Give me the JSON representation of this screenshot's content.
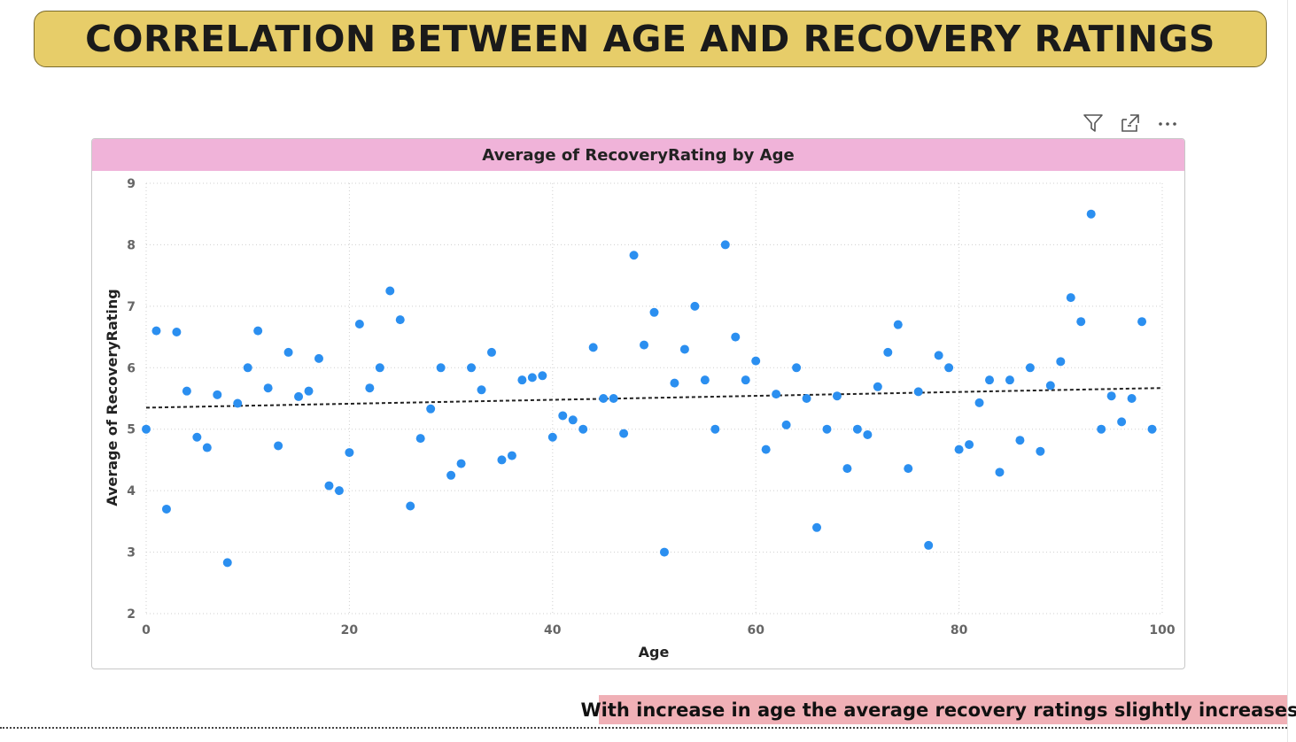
{
  "page": {
    "title": "CORRELATION BETWEEN AGE AND RECOVERY RATINGS",
    "insight": "With increase in age the average recovery ratings slightly increases."
  },
  "toolbar": {
    "icons": [
      "filter-icon",
      "focus-mode-icon",
      "more-options-icon"
    ]
  },
  "colors": {
    "title_banner": "#e7cd69",
    "chart_header": "#f0b3d9",
    "insight_bg": "#f0b0b6",
    "points": "#2b8ff0",
    "trend": "#222222"
  },
  "chart_data": {
    "type": "scatter",
    "title": "Average of RecoveryRating by Age",
    "xlabel": "Age",
    "ylabel": "Average of RecoveryRating",
    "xlim": [
      0,
      100
    ],
    "ylim": [
      2,
      9
    ],
    "x_ticks": [
      0,
      20,
      40,
      60,
      80,
      100
    ],
    "y_ticks": [
      2,
      3,
      4,
      5,
      6,
      7,
      8,
      9
    ],
    "grid": true,
    "trendline": {
      "style": "dashed",
      "start": [
        0,
        5.35
      ],
      "end": [
        100,
        5.67
      ]
    },
    "points": [
      {
        "x": 0,
        "y": 5.0
      },
      {
        "x": 1,
        "y": 6.6
      },
      {
        "x": 2,
        "y": 3.7
      },
      {
        "x": 3,
        "y": 6.58
      },
      {
        "x": 4,
        "y": 5.62
      },
      {
        "x": 5,
        "y": 4.87
      },
      {
        "x": 6,
        "y": 4.7
      },
      {
        "x": 7,
        "y": 5.56
      },
      {
        "x": 8,
        "y": 2.83
      },
      {
        "x": 9,
        "y": 5.42
      },
      {
        "x": 10,
        "y": 6.0
      },
      {
        "x": 11,
        "y": 6.6
      },
      {
        "x": 12,
        "y": 5.67
      },
      {
        "x": 13,
        "y": 4.73
      },
      {
        "x": 14,
        "y": 6.25
      },
      {
        "x": 15,
        "y": 5.53
      },
      {
        "x": 16,
        "y": 5.62
      },
      {
        "x": 17,
        "y": 6.15
      },
      {
        "x": 18,
        "y": 4.08
      },
      {
        "x": 19,
        "y": 4.0
      },
      {
        "x": 20,
        "y": 4.62
      },
      {
        "x": 21,
        "y": 6.71
      },
      {
        "x": 22,
        "y": 5.67
      },
      {
        "x": 23,
        "y": 6.0
      },
      {
        "x": 24,
        "y": 7.25
      },
      {
        "x": 25,
        "y": 6.78
      },
      {
        "x": 26,
        "y": 3.75
      },
      {
        "x": 27,
        "y": 4.85
      },
      {
        "x": 28,
        "y": 5.33
      },
      {
        "x": 29,
        "y": 6.0
      },
      {
        "x": 30,
        "y": 4.25
      },
      {
        "x": 31,
        "y": 4.44
      },
      {
        "x": 32,
        "y": 6.0
      },
      {
        "x": 33,
        "y": 5.64
      },
      {
        "x": 34,
        "y": 6.25
      },
      {
        "x": 35,
        "y": 4.5
      },
      {
        "x": 36,
        "y": 4.57
      },
      {
        "x": 37,
        "y": 5.8
      },
      {
        "x": 38,
        "y": 5.84
      },
      {
        "x": 39,
        "y": 5.87
      },
      {
        "x": 40,
        "y": 4.87
      },
      {
        "x": 41,
        "y": 5.22
      },
      {
        "x": 42,
        "y": 5.15
      },
      {
        "x": 43,
        "y": 5.0
      },
      {
        "x": 44,
        "y": 6.33
      },
      {
        "x": 45,
        "y": 5.5
      },
      {
        "x": 46,
        "y": 5.5
      },
      {
        "x": 47,
        "y": 4.93
      },
      {
        "x": 48,
        "y": 7.83
      },
      {
        "x": 49,
        "y": 6.37
      },
      {
        "x": 50,
        "y": 6.9
      },
      {
        "x": 51,
        "y": 3.0
      },
      {
        "x": 52,
        "y": 5.75
      },
      {
        "x": 53,
        "y": 6.3
      },
      {
        "x": 54,
        "y": 7.0
      },
      {
        "x": 55,
        "y": 5.8
      },
      {
        "x": 56,
        "y": 5.0
      },
      {
        "x": 57,
        "y": 8.0
      },
      {
        "x": 58,
        "y": 6.5
      },
      {
        "x": 59,
        "y": 5.8
      },
      {
        "x": 60,
        "y": 6.11
      },
      {
        "x": 61,
        "y": 4.67
      },
      {
        "x": 62,
        "y": 5.57
      },
      {
        "x": 63,
        "y": 5.07
      },
      {
        "x": 64,
        "y": 6.0
      },
      {
        "x": 65,
        "y": 5.5
      },
      {
        "x": 66,
        "y": 3.4
      },
      {
        "x": 67,
        "y": 5.0
      },
      {
        "x": 68,
        "y": 5.54
      },
      {
        "x": 69,
        "y": 4.36
      },
      {
        "x": 70,
        "y": 5.0
      },
      {
        "x": 71,
        "y": 4.91
      },
      {
        "x": 72,
        "y": 5.69
      },
      {
        "x": 73,
        "y": 6.25
      },
      {
        "x": 74,
        "y": 6.7
      },
      {
        "x": 75,
        "y": 4.36
      },
      {
        "x": 76,
        "y": 5.61
      },
      {
        "x": 77,
        "y": 3.11
      },
      {
        "x": 78,
        "y": 6.2
      },
      {
        "x": 79,
        "y": 6.0
      },
      {
        "x": 80,
        "y": 4.67
      },
      {
        "x": 81,
        "y": 4.75
      },
      {
        "x": 82,
        "y": 5.43
      },
      {
        "x": 83,
        "y": 5.8
      },
      {
        "x": 84,
        "y": 4.3
      },
      {
        "x": 85,
        "y": 5.8
      },
      {
        "x": 86,
        "y": 4.82
      },
      {
        "x": 87,
        "y": 6.0
      },
      {
        "x": 88,
        "y": 4.64
      },
      {
        "x": 89,
        "y": 5.71
      },
      {
        "x": 90,
        "y": 6.1
      },
      {
        "x": 91,
        "y": 7.14
      },
      {
        "x": 92,
        "y": 6.75
      },
      {
        "x": 93,
        "y": 8.5
      },
      {
        "x": 94,
        "y": 5.0
      },
      {
        "x": 95,
        "y": 5.54
      },
      {
        "x": 96,
        "y": 5.12
      },
      {
        "x": 97,
        "y": 5.5
      },
      {
        "x": 98,
        "y": 6.75
      },
      {
        "x": 99,
        "y": 5.0
      }
    ]
  }
}
